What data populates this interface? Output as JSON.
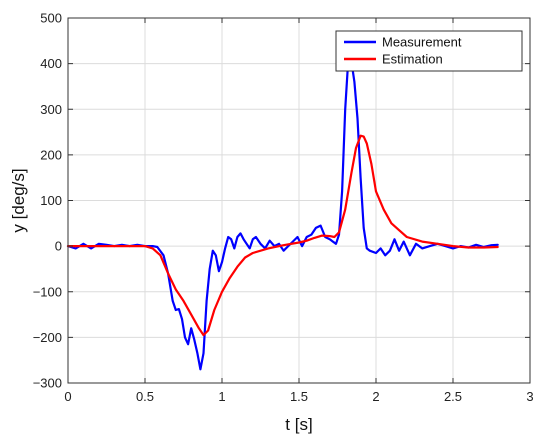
{
  "chart_data": {
    "type": "line",
    "xlabel": "t [s]",
    "ylabel": "y [deg/s]",
    "xlim": [
      0,
      3
    ],
    "ylim": [
      -300,
      500
    ],
    "xticks": [
      0,
      0.5,
      1,
      1.5,
      2,
      2.5,
      3
    ],
    "xtick_labels": [
      "0",
      "0.5",
      "1",
      "1.5",
      "2",
      "2.5",
      "3"
    ],
    "yticks": [
      -300,
      -200,
      -100,
      0,
      100,
      200,
      300,
      400,
      500
    ],
    "ytick_labels": [
      "−300",
      "−200",
      "−100",
      "0",
      "100",
      "200",
      "300",
      "400",
      "500"
    ],
    "grid": true,
    "legend_position": "top-right",
    "series": [
      {
        "name": "Measurement",
        "color": "#0000ff",
        "x": [
          0.0,
          0.05,
          0.1,
          0.15,
          0.2,
          0.25,
          0.3,
          0.35,
          0.4,
          0.45,
          0.5,
          0.55,
          0.58,
          0.62,
          0.65,
          0.68,
          0.7,
          0.72,
          0.74,
          0.76,
          0.78,
          0.8,
          0.82,
          0.84,
          0.86,
          0.88,
          0.9,
          0.92,
          0.94,
          0.96,
          0.98,
          1.0,
          1.02,
          1.04,
          1.06,
          1.08,
          1.1,
          1.12,
          1.14,
          1.16,
          1.18,
          1.2,
          1.22,
          1.25,
          1.28,
          1.31,
          1.34,
          1.37,
          1.4,
          1.43,
          1.46,
          1.49,
          1.52,
          1.55,
          1.58,
          1.61,
          1.64,
          1.67,
          1.7,
          1.72,
          1.74,
          1.76,
          1.78,
          1.8,
          1.82,
          1.84,
          1.86,
          1.88,
          1.9,
          1.92,
          1.94,
          1.96,
          2.0,
          2.03,
          2.06,
          2.09,
          2.12,
          2.15,
          2.18,
          2.22,
          2.26,
          2.3,
          2.35,
          2.4,
          2.45,
          2.5,
          2.55,
          2.6,
          2.65,
          2.7,
          2.75,
          2.79
        ],
        "y": [
          0,
          -5,
          5,
          -5,
          5,
          3,
          0,
          3,
          0,
          3,
          0,
          0,
          -2,
          -20,
          -60,
          -120,
          -140,
          -138,
          -160,
          -200,
          -215,
          -180,
          -205,
          -235,
          -270,
          -235,
          -120,
          -50,
          -10,
          -20,
          -55,
          -35,
          -5,
          20,
          15,
          -5,
          20,
          28,
          15,
          5,
          -5,
          15,
          20,
          5,
          -5,
          12,
          0,
          5,
          -10,
          0,
          10,
          20,
          0,
          20,
          25,
          40,
          45,
          20,
          15,
          10,
          5,
          25,
          120,
          300,
          410,
          405,
          360,
          280,
          150,
          40,
          -5,
          -10,
          -15,
          -5,
          -20,
          -10,
          15,
          -10,
          10,
          -20,
          5,
          -5,
          0,
          5,
          0,
          -5,
          0,
          -3,
          3,
          -2,
          2,
          3
        ]
      },
      {
        "name": "Estimation",
        "color": "#ff0000",
        "x": [
          0.0,
          0.1,
          0.2,
          0.3,
          0.4,
          0.5,
          0.55,
          0.6,
          0.65,
          0.7,
          0.75,
          0.8,
          0.85,
          0.88,
          0.91,
          0.95,
          1.0,
          1.05,
          1.1,
          1.15,
          1.2,
          1.3,
          1.4,
          1.5,
          1.55,
          1.6,
          1.65,
          1.7,
          1.73,
          1.76,
          1.8,
          1.84,
          1.87,
          1.9,
          1.92,
          1.94,
          1.97,
          2.0,
          2.05,
          2.1,
          2.15,
          2.2,
          2.3,
          2.4,
          2.5,
          2.6,
          2.7,
          2.79
        ],
        "y": [
          0,
          0,
          0,
          0,
          0,
          0,
          -5,
          -20,
          -60,
          -95,
          -120,
          -150,
          -180,
          -195,
          -185,
          -140,
          -100,
          -70,
          -45,
          -25,
          -15,
          -5,
          2,
          8,
          12,
          18,
          23,
          22,
          20,
          30,
          80,
          160,
          215,
          242,
          240,
          225,
          180,
          120,
          80,
          50,
          35,
          20,
          10,
          5,
          0,
          -3,
          -3,
          -2
        ]
      }
    ]
  }
}
